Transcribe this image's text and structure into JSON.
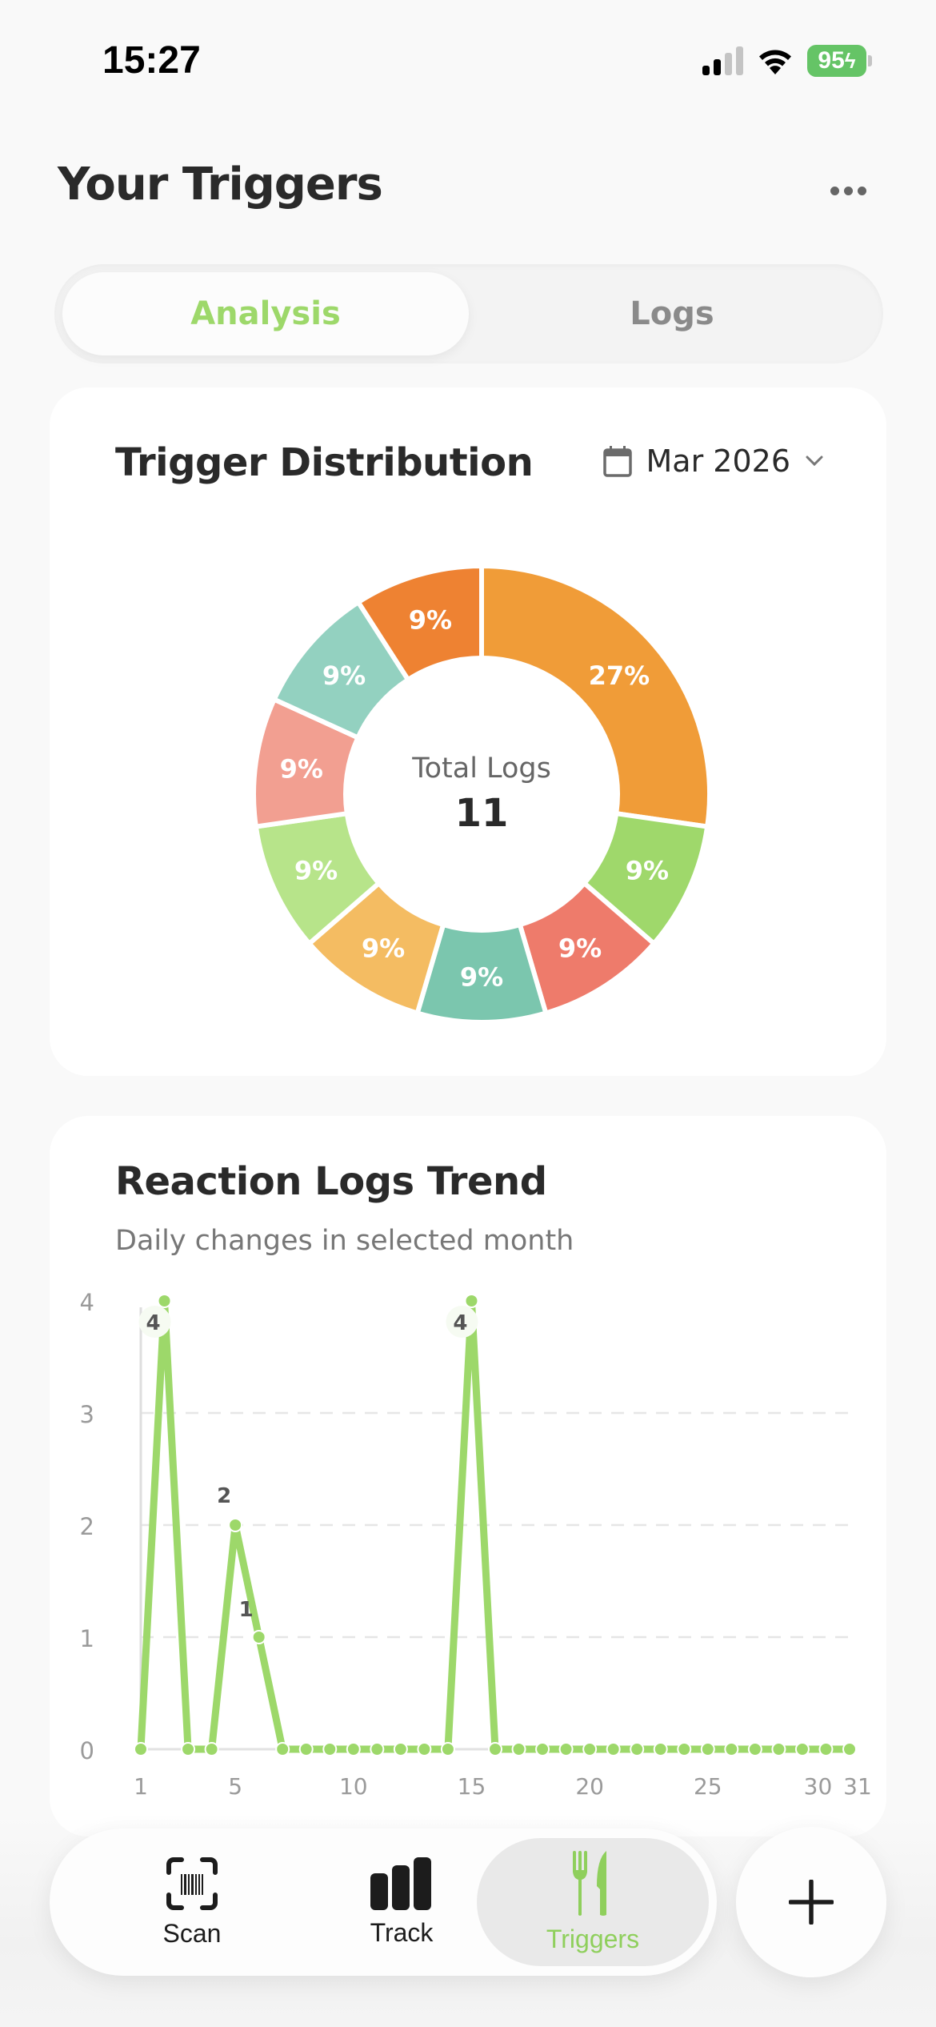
{
  "status_bar": {
    "time": "15:27",
    "battery": "95",
    "icons": [
      "signal-icon",
      "wifi-icon",
      "battery-charging-icon"
    ]
  },
  "header": {
    "title": "Your Triggers",
    "more_icon": "more-horizontal-icon"
  },
  "tabs": [
    {
      "label": "Analysis",
      "active": true
    },
    {
      "label": "Logs",
      "active": false
    }
  ],
  "distribution": {
    "title": "Trigger Distribution",
    "date_picker": {
      "icon": "calendar-icon",
      "label": "Mar 2026",
      "chevron": "chevron-down-icon"
    },
    "center_label": "Total Logs",
    "center_value": "11"
  },
  "trend": {
    "title": "Reaction Logs Trend",
    "subtitle": "Daily changes in selected month"
  },
  "bottom_nav": {
    "items": [
      {
        "label": "Scan",
        "icon": "barcode-scan-icon",
        "active": false
      },
      {
        "label": "Track",
        "icon": "bar-chart-icon",
        "active": false
      },
      {
        "label": "Triggers",
        "icon": "fork-knife-icon",
        "active": true
      }
    ],
    "add_icon": "plus-icon"
  },
  "colors": {
    "accent_green": "#9dd86a",
    "text_dark": "#2a2a2a",
    "line_green": "#9dd86a"
  },
  "chart_data": [
    {
      "type": "pie",
      "title": "Trigger Distribution",
      "subtitle": "Mar 2026",
      "donut": true,
      "center_label": "Total Logs",
      "center_value": 11,
      "slices": [
        {
          "label": "27%",
          "value": 27,
          "count": 3,
          "color": "#f09c38"
        },
        {
          "label": "9%",
          "value": 9,
          "count": 1,
          "color": "#9fd86b"
        },
        {
          "label": "9%",
          "value": 9,
          "count": 1,
          "color": "#ee7b6b"
        },
        {
          "label": "9%",
          "value": 9,
          "count": 1,
          "color": "#7bc6ae"
        },
        {
          "label": "9%",
          "value": 9,
          "count": 1,
          "color": "#f4bc62"
        },
        {
          "label": "9%",
          "value": 9,
          "count": 1,
          "color": "#b7e48a"
        },
        {
          "label": "9%",
          "value": 9,
          "count": 1,
          "color": "#f29f91"
        },
        {
          "label": "9%",
          "value": 9,
          "count": 1,
          "color": "#93d1c0"
        },
        {
          "label": "9%",
          "value": 9,
          "count": 1,
          "color": "#ee8232"
        }
      ]
    },
    {
      "type": "line",
      "title": "Reaction Logs Trend",
      "subtitle": "Daily changes in selected month",
      "xlabel": "",
      "ylabel": "",
      "x": [
        1,
        2,
        3,
        4,
        5,
        6,
        7,
        8,
        9,
        10,
        11,
        12,
        13,
        14,
        15,
        16,
        17,
        18,
        19,
        20,
        21,
        22,
        23,
        24,
        25,
        26,
        27,
        28,
        29,
        30,
        31
      ],
      "series": [
        {
          "name": "Reaction Logs",
          "color": "#9dd86a",
          "values": [
            0,
            4,
            0,
            0,
            2,
            1,
            0,
            0,
            0,
            0,
            0,
            0,
            0,
            0,
            4,
            0,
            0,
            0,
            0,
            0,
            0,
            0,
            0,
            0,
            0,
            0,
            0,
            0,
            0,
            0,
            0
          ]
        }
      ],
      "x_ticks": [
        "1",
        "5",
        "10",
        "15",
        "20",
        "25",
        "30",
        "31"
      ],
      "y_ticks": [
        "0",
        "1",
        "2",
        "3",
        "4"
      ],
      "ylim": [
        0,
        4
      ],
      "grid": "horizontal dashed",
      "point_labels": [
        {
          "x": 2,
          "label": "4"
        },
        {
          "x": 5,
          "label": "2"
        },
        {
          "x": 6,
          "label": "1"
        },
        {
          "x": 15,
          "label": "4"
        }
      ]
    }
  ]
}
